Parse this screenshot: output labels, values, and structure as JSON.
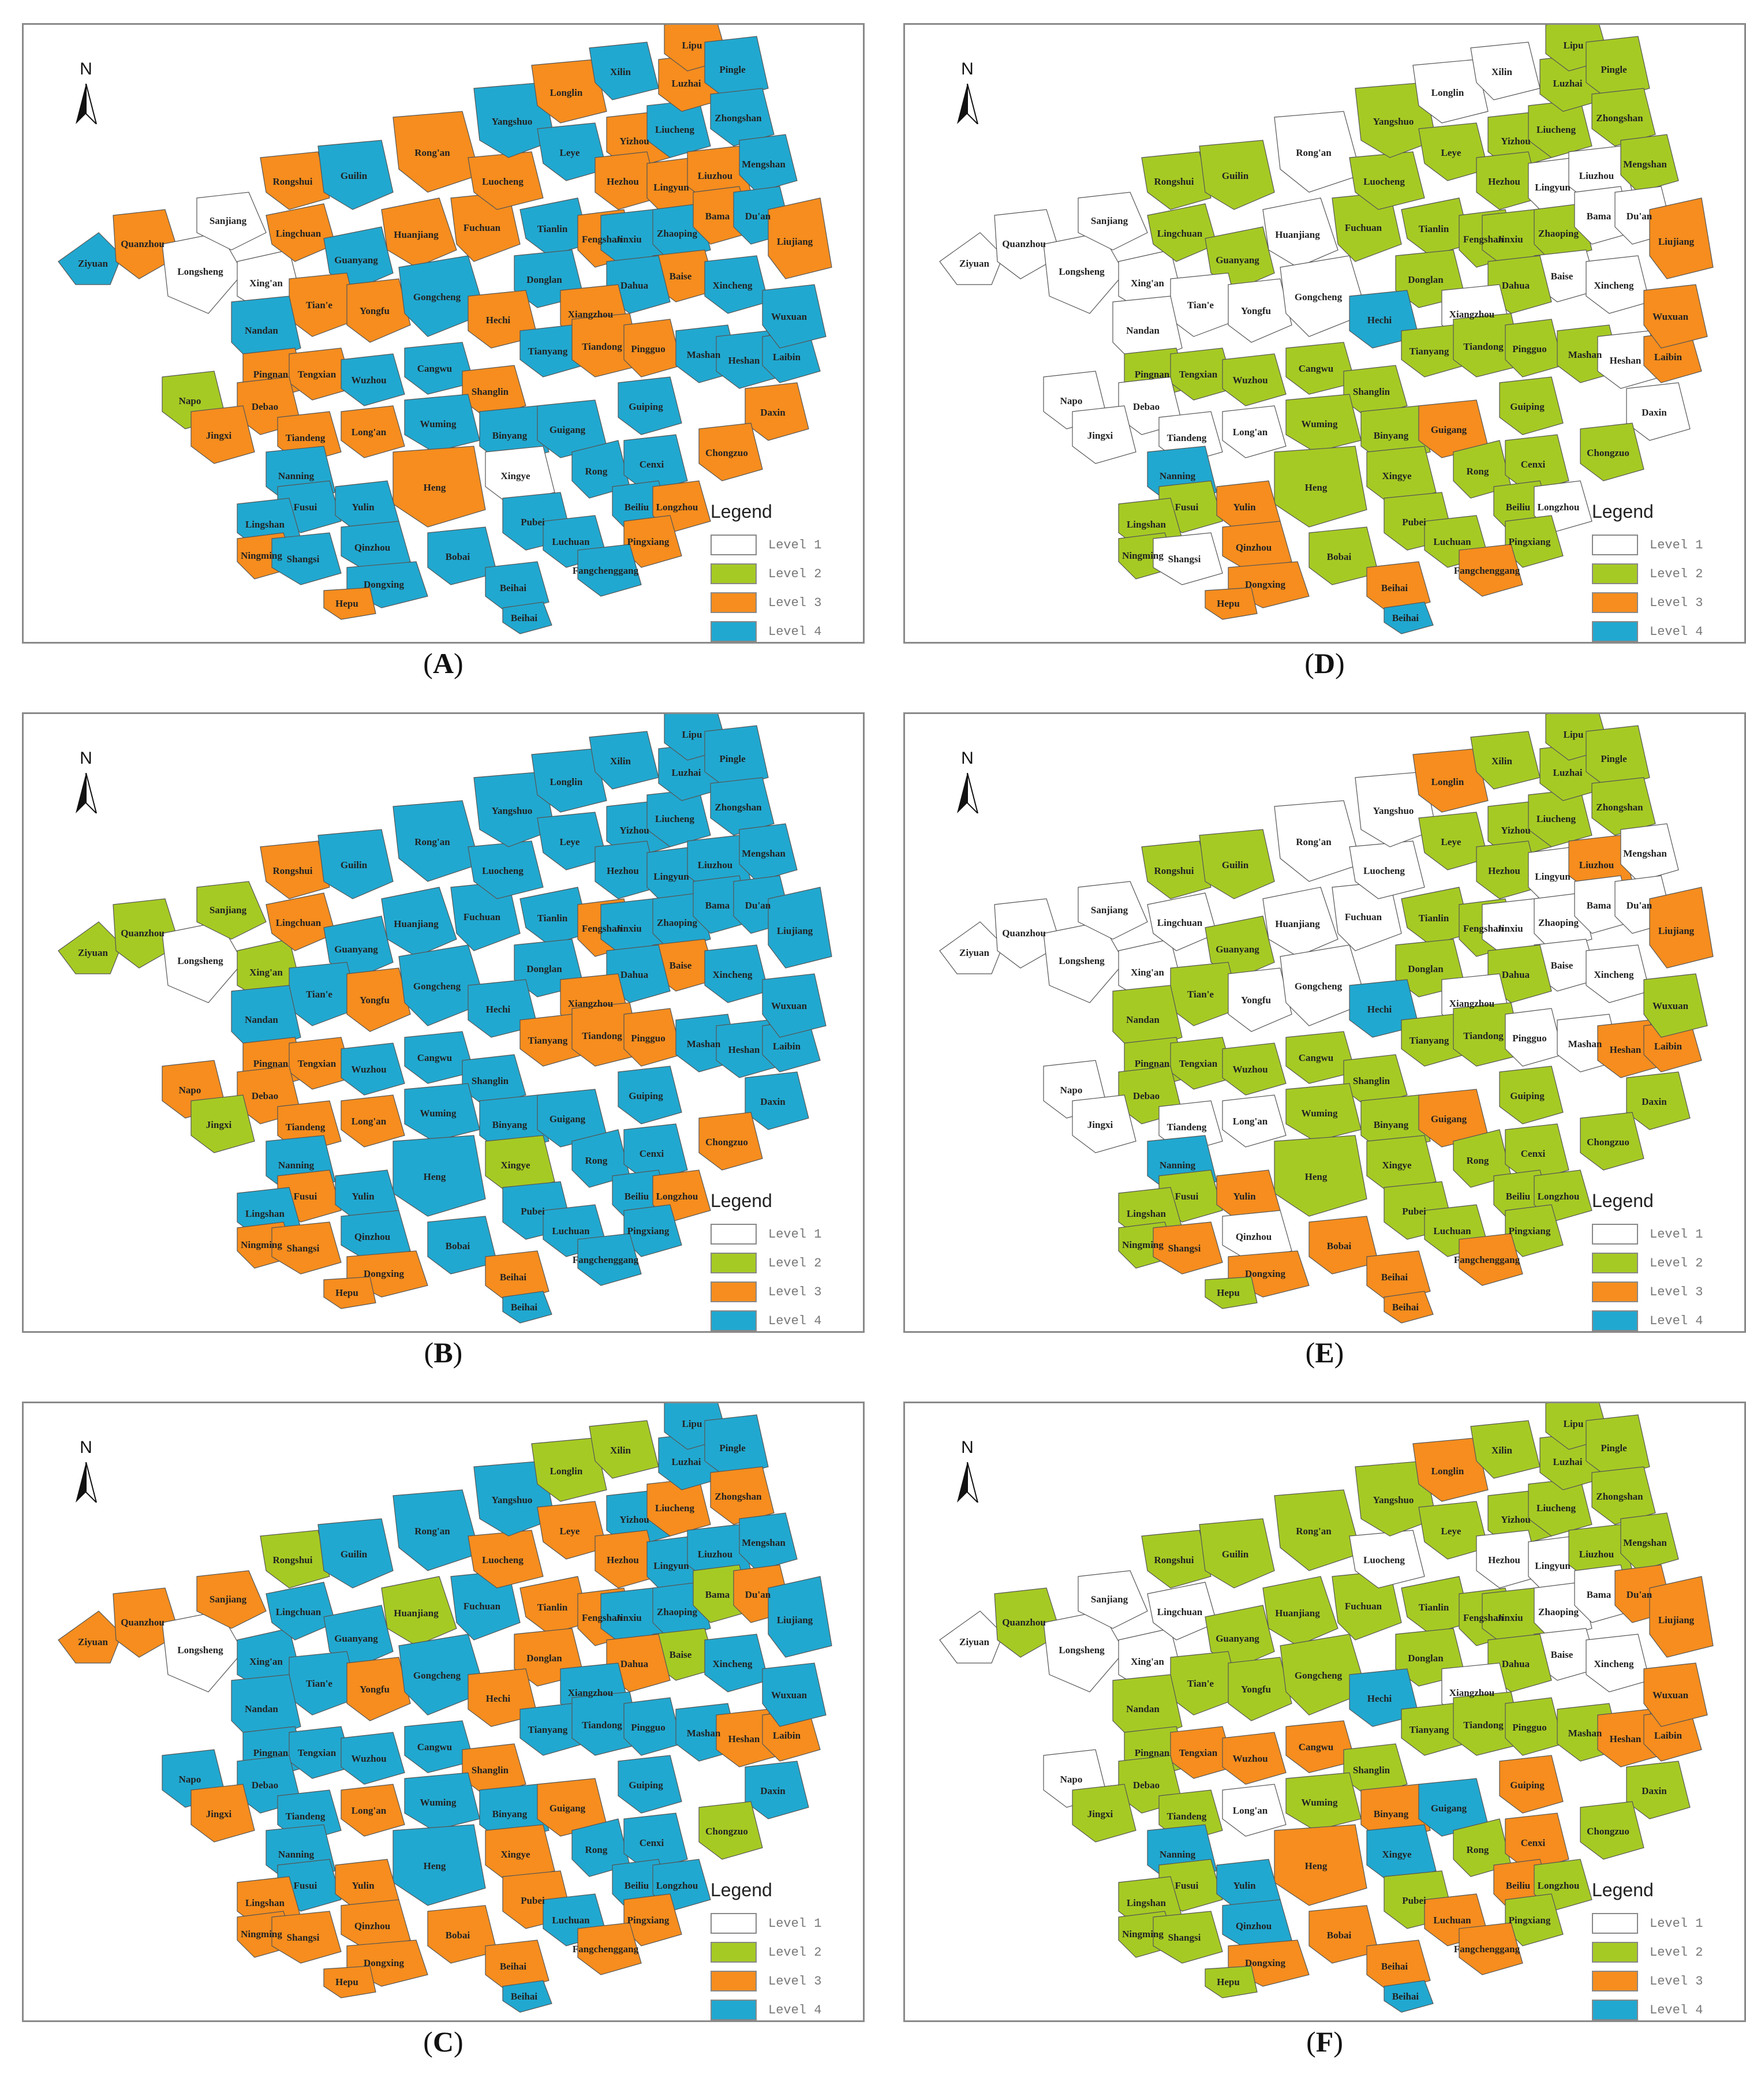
{
  "legend": {
    "title": "Legend",
    "items": [
      {
        "label": "Level 1",
        "color": "#ffffff"
      },
      {
        "label": "Level 2",
        "color": "#a6ca24"
      },
      {
        "label": "Level 3",
        "color": "#f68d1e"
      },
      {
        "label": "Level 4",
        "color": "#21a8d0"
      }
    ]
  },
  "north_label": "N",
  "place_names": [
    "Ziyuan",
    "Quanzhou",
    "Longsheng",
    "Sanjiang",
    "Xing'an",
    "Rongshui",
    "Lingchuan",
    "Guilin",
    "Guanyang",
    "Huanjiang",
    "Rong'an",
    "Tian'e",
    "Nandan",
    "Yongfu",
    "Gongcheng",
    "Fuchuan",
    "Luocheng",
    "Yangshuo",
    "Leye",
    "Longlin",
    "Xilin",
    "Tianlin",
    "Fengshan",
    "Donglan",
    "Hechi",
    "Yizhou",
    "Liucheng",
    "Luzhai",
    "Lipu",
    "Pingle",
    "Zhongshan",
    "Hezhou",
    "Lingyun",
    "Liuzhou",
    "Mengshan",
    "Jinxiu",
    "Zhaoping",
    "Bama",
    "Du'an",
    "Liujiang",
    "Baise",
    "Dahua",
    "Xincheng",
    "Xiangzhou",
    "Tianyang",
    "Tiandong",
    "Pingguo",
    "Mashan",
    "Heshan",
    "Laibin",
    "Wuxuan",
    "Pingnan",
    "Tengxian",
    "Wuzhou",
    "Cangwu",
    "Shanglin",
    "Napo",
    "Debao",
    "Jingxi",
    "Tiandeng",
    "Long'an",
    "Wuming",
    "Binyang",
    "Guigang",
    "Guiping",
    "Daxin",
    "Nanning",
    "Heng",
    "Xingye",
    "Rong",
    "Cenxi",
    "Chongzuo",
    "Fusui",
    "Yulin",
    "Beiliu",
    "Longzhou",
    "Lingshan",
    "Pubei",
    "Luchuan",
    "Pingxiang",
    "Ningming",
    "Shangsi",
    "Qinzhou",
    "Bobai",
    "Fangchenggang",
    "Dongxing",
    "Hepu",
    "Beihai"
  ],
  "panels": [
    {
      "id": "A",
      "caption": "A"
    },
    {
      "id": "D",
      "caption": "D"
    },
    {
      "id": "B",
      "caption": "B"
    },
    {
      "id": "E",
      "caption": "E"
    },
    {
      "id": "C",
      "caption": "C"
    },
    {
      "id": "F",
      "caption": "F"
    }
  ]
}
